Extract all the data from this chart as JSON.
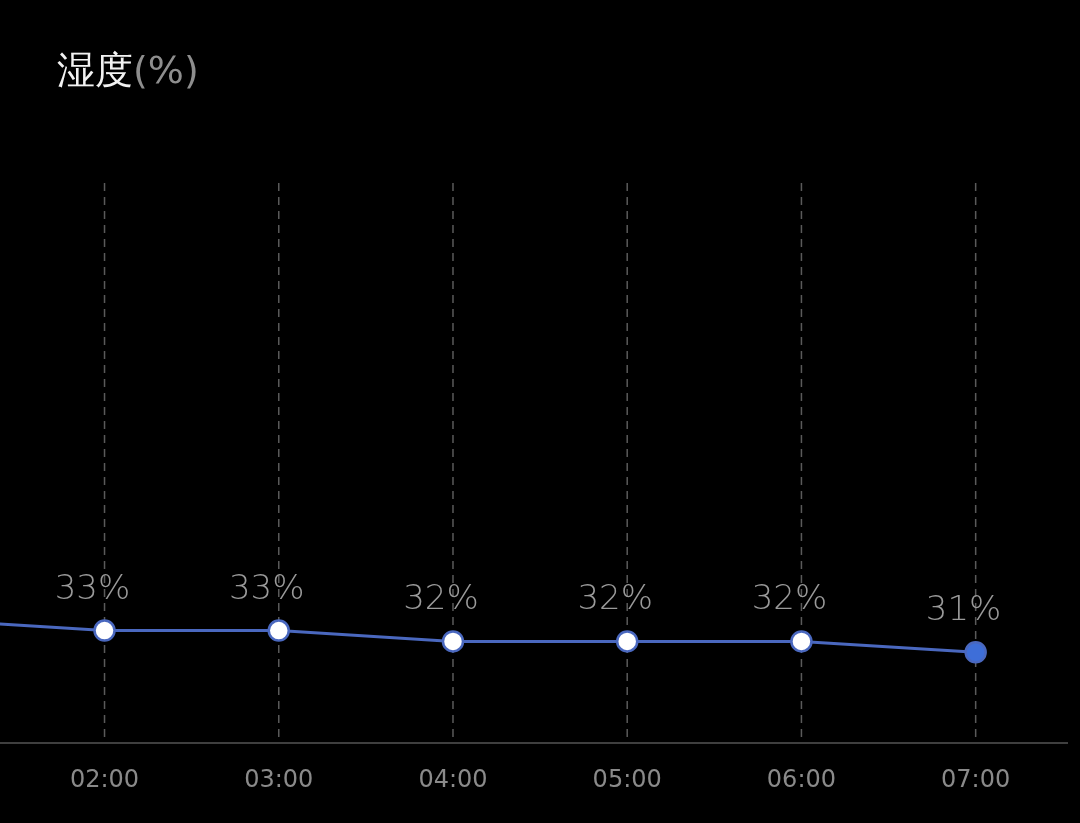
{
  "chart_data": {
    "type": "line",
    "title": "湿度(%)",
    "xlim": [
      1.4,
      7.53
    ],
    "xticks": [
      {
        "value": 2,
        "label": "02:00"
      },
      {
        "value": 3,
        "label": "03:00"
      },
      {
        "value": 4,
        "label": "04:00"
      },
      {
        "value": 5,
        "label": "05:00"
      },
      {
        "value": 6,
        "label": "06:00"
      },
      {
        "value": 7,
        "label": "07:00"
      }
    ],
    "ylim": [
      22.6,
      74.4
    ],
    "tick_labels": "x",
    "grid": "x",
    "marker": "circle",
    "series": [
      {
        "color": "#4a68bf",
        "x": [
          1.4,
          2,
          3,
          4,
          5,
          6,
          7
        ],
        "values": [
          33.6,
          33,
          33,
          32,
          32,
          32,
          31
        ],
        "colors": [
          null,
          "#ffffff",
          "#ffffff",
          "#ffffff",
          "#ffffff",
          "#ffffff",
          "#3e6ed8"
        ],
        "value_labels": [
          null,
          "33%",
          "33%",
          "32%",
          "32%",
          "32%",
          "31%"
        ]
      }
    ]
  }
}
